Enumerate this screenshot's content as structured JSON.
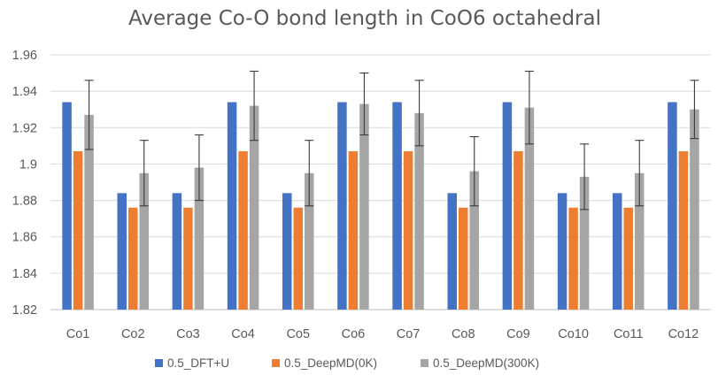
{
  "chart_data": {
    "type": "bar",
    "title": "Average Co-O bond length in CoO6 octahedral",
    "categories": [
      "Co1",
      "Co2",
      "Co3",
      "Co4",
      "Co5",
      "Co6",
      "Co7",
      "Co8",
      "Co9",
      "Co10",
      "Co11",
      "Co12"
    ],
    "series": [
      {
        "name": "0.5_DFT+U",
        "color": "#4472c4",
        "values": [
          1.934,
          1.884,
          1.884,
          1.934,
          1.884,
          1.934,
          1.934,
          1.884,
          1.934,
          1.884,
          1.884,
          1.934
        ]
      },
      {
        "name": "0.5_DeepMD(0K)",
        "color": "#ed7d31",
        "values": [
          1.907,
          1.876,
          1.876,
          1.907,
          1.876,
          1.907,
          1.907,
          1.876,
          1.907,
          1.876,
          1.876,
          1.907
        ]
      },
      {
        "name": "0.5_DeepMD(300K)",
        "color": "#a5a5a5",
        "values": [
          1.927,
          1.895,
          1.898,
          1.932,
          1.895,
          1.933,
          1.928,
          1.896,
          1.931,
          1.893,
          1.895,
          1.93
        ],
        "error": [
          0.019,
          0.018,
          0.018,
          0.019,
          0.018,
          0.017,
          0.018,
          0.019,
          0.02,
          0.018,
          0.018,
          0.016
        ]
      }
    ],
    "ylim": [
      1.82,
      1.96
    ],
    "yticks": [
      "1.82",
      "1.84",
      "1.86",
      "1.88",
      "1.9",
      "1.92",
      "1.94",
      "1.96"
    ],
    "xlabel": "",
    "ylabel": "",
    "grid": true,
    "legend": "bottom"
  }
}
